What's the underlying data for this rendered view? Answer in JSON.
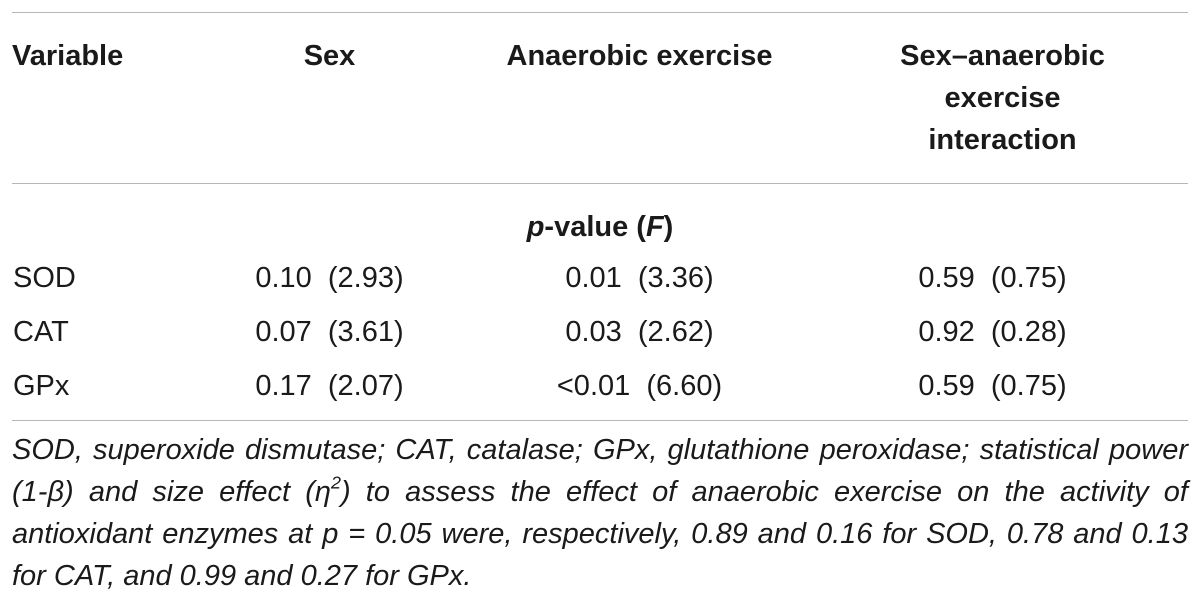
{
  "table": {
    "headers": {
      "variable": "Variable",
      "sex": "Sex",
      "anaerobic": "Anaerobic exercise",
      "interaction": "Sex–anaerobic exercise interaction"
    },
    "subheader": {
      "p": "p",
      "value": "-value (",
      "f": "F",
      "close": ")"
    },
    "rows": [
      {
        "variable": "SOD",
        "sex": "0.10  (2.93)",
        "anaerobic": "0.01  (3.36)",
        "interaction": "0.59  (0.75)"
      },
      {
        "variable": "CAT",
        "sex": "0.07  (3.61)",
        "anaerobic": "0.03  (2.62)",
        "interaction": "0.92  (0.28)"
      },
      {
        "variable": "GPx",
        "sex": "0.17  (2.07)",
        "anaerobic": "<0.01  (6.60)",
        "interaction": "0.59  (0.75)"
      }
    ]
  },
  "footnote": {
    "part1": "SOD, superoxide dismutase; CAT, catalase; GPx, glutathione peroxidase; statistical power (1-β) and size effect (η",
    "sup": "2",
    "part2": ") to assess the effect of anaerobic exercise on the activity of antioxidant enzymes at p = 0.05 were, respectively, 0.89 and 0.16 for SOD, 0.78 and 0.13 for CAT, and 0.99 and 0.27 for GPx."
  }
}
